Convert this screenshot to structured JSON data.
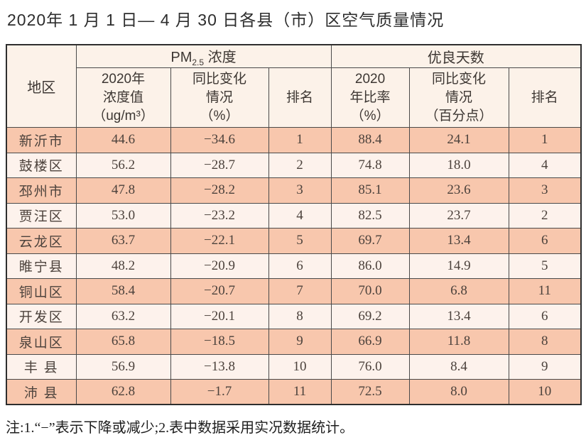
{
  "page": {
    "title": "2020年 1 月 1 日— 4 月 30 日各县（市）区空气质量情况",
    "note": "注:1.“−”表示下降或减少;2.表中数据采用实况数据统计。"
  },
  "table": {
    "header": {
      "region": "地区",
      "pm_group_prefix": "PM",
      "pm_group_sub": "2.5",
      "pm_group_suffix": " 浓度",
      "good_group": "优良天数",
      "pm_value": "2020年\n浓度值\n（ug/m³）",
      "pm_change": "同比变化\n情况\n（%）",
      "pm_rank": "排名",
      "good_ratio": "2020\n年比率\n（%）",
      "good_change": "同比变化\n情况\n（百分点）",
      "good_rank": "排名"
    },
    "columns_keys": [
      "region",
      "pm_value",
      "pm_change",
      "pm_rank",
      "good_ratio",
      "good_change",
      "good_rank"
    ],
    "rows": [
      {
        "region": "新沂市",
        "pm_value": "44.6",
        "pm_change": "−34.6",
        "pm_rank": "1",
        "good_ratio": "88.4",
        "good_change": "24.1",
        "good_rank": "1"
      },
      {
        "region": "鼓楼区",
        "pm_value": "56.2",
        "pm_change": "−28.7",
        "pm_rank": "2",
        "good_ratio": "74.8",
        "good_change": "18.0",
        "good_rank": "4"
      },
      {
        "region": "邳州市",
        "pm_value": "47.8",
        "pm_change": "−28.2",
        "pm_rank": "3",
        "good_ratio": "85.1",
        "good_change": "23.6",
        "good_rank": "3"
      },
      {
        "region": "贾汪区",
        "pm_value": "53.0",
        "pm_change": "−23.2",
        "pm_rank": "4",
        "good_ratio": "82.5",
        "good_change": "23.7",
        "good_rank": "2"
      },
      {
        "region": "云龙区",
        "pm_value": "63.7",
        "pm_change": "−22.1",
        "pm_rank": "5",
        "good_ratio": "69.7",
        "good_change": "13.4",
        "good_rank": "6"
      },
      {
        "region": "睢宁县",
        "pm_value": "48.2",
        "pm_change": "−20.9",
        "pm_rank": "6",
        "good_ratio": "86.0",
        "good_change": "14.9",
        "good_rank": "5"
      },
      {
        "region": "铜山区",
        "pm_value": "58.4",
        "pm_change": "−20.7",
        "pm_rank": "7",
        "good_ratio": "70.0",
        "good_change": "6.8",
        "good_rank": "11"
      },
      {
        "region": "开发区",
        "pm_value": "63.2",
        "pm_change": "−20.1",
        "pm_rank": "8",
        "good_ratio": "69.2",
        "good_change": "13.4",
        "good_rank": "6"
      },
      {
        "region": "泉山区",
        "pm_value": "65.8",
        "pm_change": "−18.5",
        "pm_rank": "9",
        "good_ratio": "66.9",
        "good_change": "11.8",
        "good_rank": "8"
      },
      {
        "region": "丰 县",
        "pm_value": "56.9",
        "pm_change": "−13.8",
        "pm_rank": "10",
        "good_ratio": "76.0",
        "good_change": "8.4",
        "good_rank": "9"
      },
      {
        "region": "沛 县",
        "pm_value": "62.8",
        "pm_change": "−1.7",
        "pm_rank": "11",
        "good_ratio": "72.5",
        "good_change": "8.0",
        "good_rank": "10"
      }
    ]
  },
  "colors": {
    "row_dark": "#f8c7ad",
    "row_light": "#fdf2ec",
    "header_bg": "#fcf2e9",
    "border": "#4a4a4a",
    "outer_border": "#2e2e2e",
    "text": "#4c423c"
  }
}
